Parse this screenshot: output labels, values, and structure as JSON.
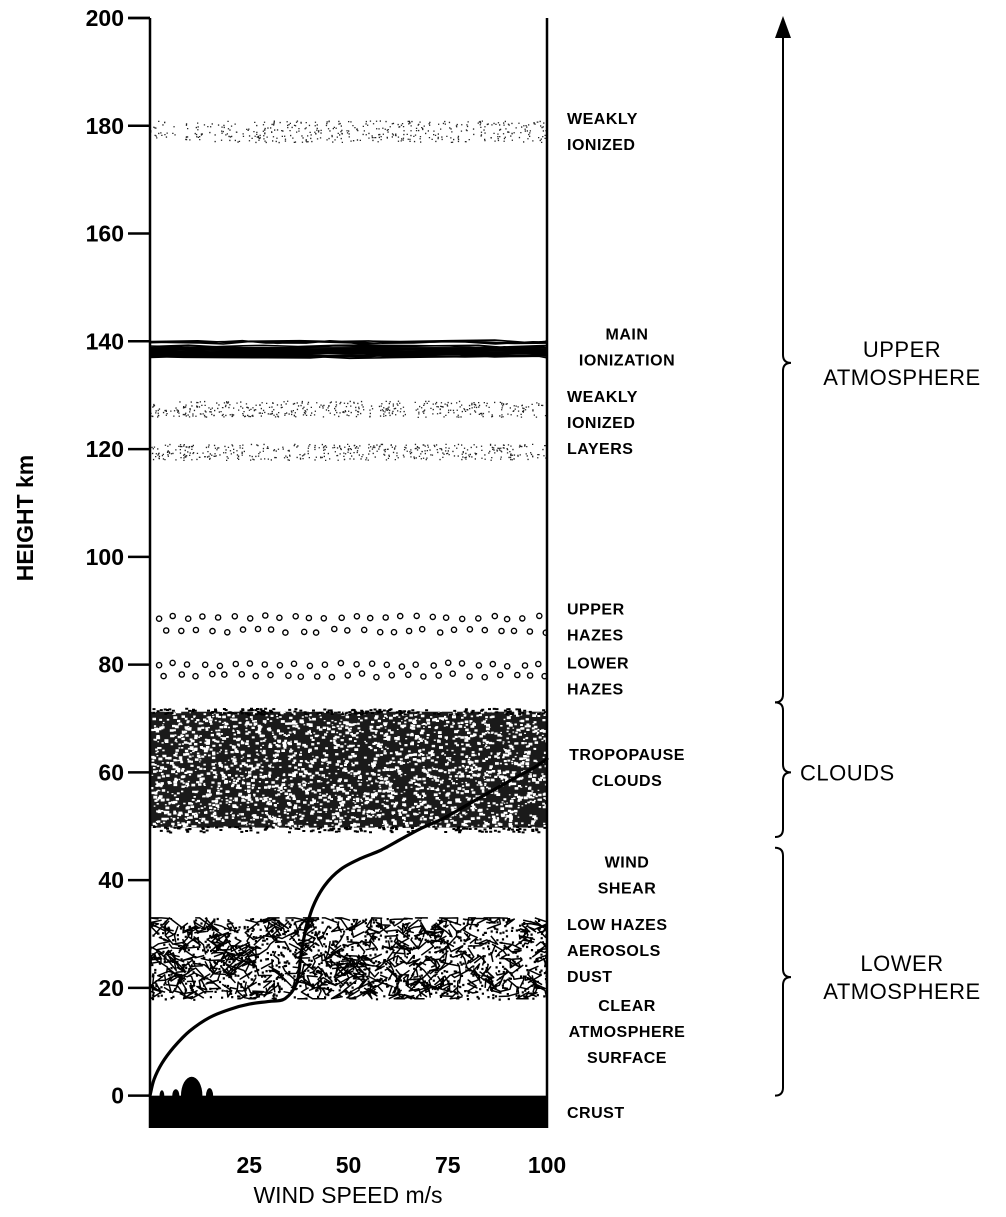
{
  "chart_data": {
    "type": "diagram",
    "xlabel": "WIND SPEED m/s",
    "ylabel": "HEIGHT km",
    "xlim": [
      0,
      100
    ],
    "ylim": [
      -6,
      200
    ],
    "x_ticks": [
      {
        "value": 25,
        "label": "25"
      },
      {
        "value": 50,
        "label": "50"
      },
      {
        "value": 75,
        "label": "75"
      },
      {
        "value": 100,
        "label": "100"
      }
    ],
    "y_ticks": [
      {
        "value": 0,
        "label": "0"
      },
      {
        "value": 20,
        "label": "20"
      },
      {
        "value": 40,
        "label": "40"
      },
      {
        "value": 60,
        "label": "60"
      },
      {
        "value": 80,
        "label": "80"
      },
      {
        "value": 100,
        "label": "100"
      },
      {
        "value": 120,
        "label": "120"
      },
      {
        "value": 140,
        "label": "140"
      },
      {
        "value": 160,
        "label": "160"
      },
      {
        "value": 180,
        "label": "180"
      },
      {
        "value": 200,
        "label": "200"
      }
    ],
    "layers": [
      {
        "name": "weakly-ionized",
        "style": "stipple",
        "ymin": 177,
        "ymax": 181,
        "label_lines": [
          "WEAKLY",
          "IONIZED"
        ],
        "label_y": 179
      },
      {
        "name": "main-ionization",
        "style": "dense-lines",
        "ymin": 137,
        "ymax": 140,
        "label_lines": [
          "MAIN",
          "IONIZATION"
        ],
        "label_y": 139
      },
      {
        "name": "weakly-ionized-layers-upper",
        "style": "stipple",
        "ymin": 126,
        "ymax": 129,
        "label_lines": [],
        "label_y": null
      },
      {
        "name": "weakly-ionized-layers",
        "style": "stipple",
        "ymin": 118,
        "ymax": 121,
        "label_lines": [
          "WEAKLY",
          "IONIZED",
          "LAYERS"
        ],
        "label_y": 125
      },
      {
        "name": "upper-hazes",
        "style": "circles",
        "ymin": 85,
        "ymax": 90,
        "label_lines": [
          "UPPER",
          "HAZES"
        ],
        "label_y": 88
      },
      {
        "name": "lower-hazes",
        "style": "circles",
        "ymin": 77,
        "ymax": 81,
        "label_lines": [
          "LOWER",
          "HAZES"
        ],
        "label_y": 78
      },
      {
        "name": "tropopause-clouds",
        "style": "dense-speckle",
        "ymin": 49,
        "ymax": 72,
        "label_lines": [
          "TROPOPAUSE",
          "CLOUDS"
        ],
        "label_y": 61
      },
      {
        "name": "wind-shear",
        "style": "none",
        "ymin": null,
        "ymax": null,
        "label_lines": [
          "WIND",
          "SHEAR"
        ],
        "label_y": 41
      },
      {
        "name": "low-hazes-aerosols-dust",
        "style": "tangle",
        "ymin": 18,
        "ymax": 33,
        "label_lines": [
          "LOW HAZES",
          "AEROSOLS",
          "DUST"
        ],
        "label_y": 27
      },
      {
        "name": "clear-atmosphere-surface",
        "style": "none",
        "ymin": null,
        "ymax": null,
        "label_lines": [
          "CLEAR",
          "ATMOSPHERE",
          "SURFACE"
        ],
        "label_y": 12
      },
      {
        "name": "crust",
        "style": "solid",
        "ymin": -6,
        "ymax": 0,
        "label_lines": [
          "CRUST"
        ],
        "label_y": -3
      }
    ],
    "regions": [
      {
        "name": "upper-atmosphere",
        "ymin": 73,
        "ymax": 200,
        "label_lines": [
          "UPPER",
          "ATMOSPHERE"
        ],
        "label_y": 136,
        "arrow_top": true
      },
      {
        "name": "clouds",
        "ymin": 48,
        "ymax": 73,
        "label_lines": [
          "CLOUDS"
        ],
        "label_y": 60,
        "arrow_top": false
      },
      {
        "name": "lower-atmosphere",
        "ymin": 0,
        "ymax": 46,
        "label_lines": [
          "LOWER",
          "ATMOSPHERE"
        ],
        "label_y": 22,
        "arrow_top": false
      }
    ],
    "wind_profile": {
      "x": [
        0,
        1,
        3,
        6,
        10,
        15,
        20,
        25,
        30,
        34,
        37,
        38,
        39,
        41,
        44,
        48,
        53,
        58,
        63,
        68,
        74,
        80,
        86,
        92,
        97,
        100
      ],
      "y": [
        0,
        3,
        6,
        9,
        12,
        14.5,
        16,
        17,
        17.5,
        18,
        21,
        26,
        30,
        35,
        39,
        42,
        44,
        45.5,
        47.5,
        49.5,
        51.5,
        54,
        56.5,
        59,
        61,
        62.5
      ]
    }
  }
}
